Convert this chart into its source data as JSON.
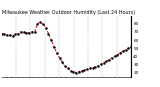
{
  "title": "Milwaukee Weather Outdoor Humidity (Last 24 Hours)",
  "line_color": "#cc0000",
  "marker_color": "#000000",
  "bg_color": "#ffffff",
  "grid_color": "#888888",
  "y_min": 15,
  "y_max": 90,
  "humidity": [
    68,
    67,
    66,
    66,
    65,
    67,
    68,
    70,
    70,
    69,
    69,
    70,
    70,
    80,
    82,
    80,
    75,
    68,
    60,
    52,
    44,
    38,
    33,
    28,
    25,
    22,
    21,
    20,
    21,
    22,
    23,
    24,
    25,
    26,
    27,
    28,
    30,
    32,
    34,
    36,
    38,
    40,
    42,
    44,
    46,
    48,
    50,
    52
  ],
  "yticks": [
    20,
    30,
    40,
    50,
    60,
    70,
    80
  ],
  "num_vgrid": 9,
  "ylabel_fontsize": 3.0,
  "title_fontsize": 3.5
}
